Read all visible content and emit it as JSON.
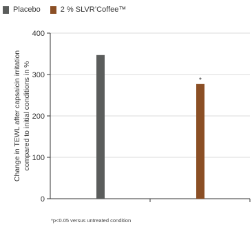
{
  "legend": [
    {
      "label": "Placebo",
      "color": "#5b5d5c"
    },
    {
      "label": "2 % SLVR’Coffee™",
      "color": "#8b4f25"
    }
  ],
  "chart_data": {
    "type": "bar",
    "categories": [
      "Placebo",
      "2 % SLVR’Coffee™"
    ],
    "series": [
      {
        "name": "Placebo",
        "values": [
          347,
          null
        ],
        "color": "#5b5d5c"
      },
      {
        "name": "2 % SLVR’Coffee™",
        "values": [
          null,
          277
        ],
        "color": "#8b4f25"
      }
    ],
    "ylabel": "Change in TEWL after capsaicin irritation compared to initial conditions in %",
    "ylabel_lines": [
      "Change in TEWL after capsaicin irritation",
      "compared to initial conditions in %"
    ],
    "ylim": [
      0,
      400
    ],
    "yticks": [
      0,
      100,
      200,
      300,
      400
    ],
    "grid": "horizontal",
    "annotations": [
      {
        "category": "2 % SLVR’Coffee™",
        "text": "*"
      }
    ]
  },
  "footnote": "*p<0.05 versus untreated condition"
}
